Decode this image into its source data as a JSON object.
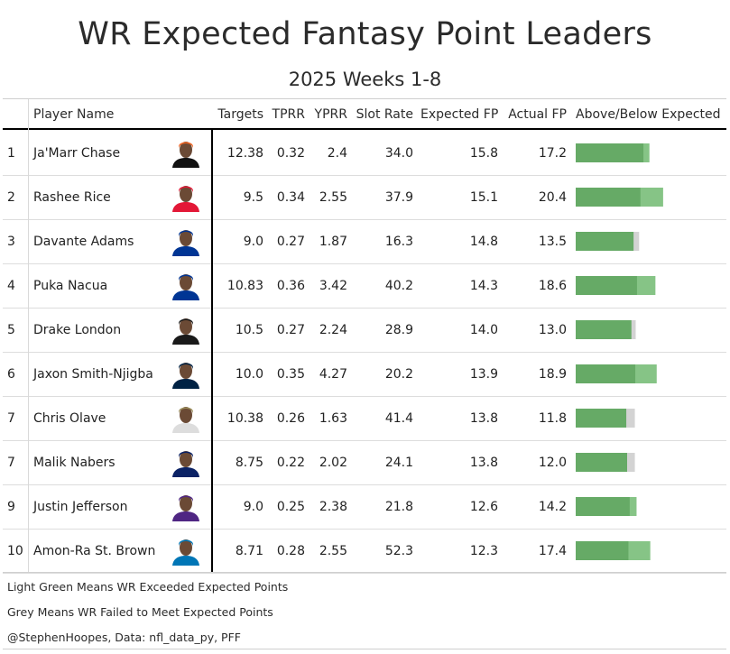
{
  "title": "WR Expected Fantasy Point Leaders",
  "subtitle": "2025 Weeks 1-8",
  "columns": {
    "player_name": "Player Name",
    "targets": "Targets",
    "tprr": "TPRR",
    "yprr": "YPRR",
    "slot_rate": "Slot Rate",
    "expected_fp": "Expected FP",
    "actual_fp": "Actual FP",
    "above_below": "Above/Below Expected"
  },
  "colors": {
    "expected_bar": "#66aa66",
    "exceeded": "#86c486",
    "failed": "#d3d3d3"
  },
  "rows": [
    {
      "rank": "1",
      "player": "Ja'Marr Chase",
      "targets": "12.38",
      "tprr": "0.32",
      "yprr": "2.4",
      "slot_rate": "34.0",
      "expected_fp": "15.8",
      "actual_fp": "17.2",
      "helmet_color": "#f26522",
      "jersey_color": "#111111"
    },
    {
      "rank": "2",
      "player": "Rashee Rice",
      "targets": "9.5",
      "tprr": "0.34",
      "yprr": "2.55",
      "slot_rate": "37.9",
      "expected_fp": "15.1",
      "actual_fp": "20.4",
      "helmet_color": "#e31837",
      "jersey_color": "#e31837"
    },
    {
      "rank": "3",
      "player": "Davante Adams",
      "targets": "9.0",
      "tprr": "0.27",
      "yprr": "1.87",
      "slot_rate": "16.3",
      "expected_fp": "14.8",
      "actual_fp": "13.5",
      "helmet_color": "#003594",
      "jersey_color": "#003594"
    },
    {
      "rank": "4",
      "player": "Puka Nacua",
      "targets": "10.83",
      "tprr": "0.36",
      "yprr": "3.42",
      "slot_rate": "40.2",
      "expected_fp": "14.3",
      "actual_fp": "18.6",
      "helmet_color": "#003594",
      "jersey_color": "#003594"
    },
    {
      "rank": "5",
      "player": "Drake London",
      "targets": "10.5",
      "tprr": "0.27",
      "yprr": "2.24",
      "slot_rate": "28.9",
      "expected_fp": "14.0",
      "actual_fp": "13.0",
      "helmet_color": "#1a1a1a",
      "jersey_color": "#1a1a1a"
    },
    {
      "rank": "6",
      "player": "Jaxon Smith-Njigba",
      "targets": "10.0",
      "tprr": "0.35",
      "yprr": "4.27",
      "slot_rate": "20.2",
      "expected_fp": "13.9",
      "actual_fp": "18.9",
      "helmet_color": "#002244",
      "jersey_color": "#002244"
    },
    {
      "rank": "7",
      "player": "Chris Olave",
      "targets": "10.38",
      "tprr": "0.26",
      "yprr": "1.63",
      "slot_rate": "41.4",
      "expected_fp": "13.8",
      "actual_fp": "11.8",
      "helmet_color": "#9a8c5a",
      "jersey_color": "#dddddd"
    },
    {
      "rank": "7",
      "player": "Malik Nabers",
      "targets": "8.75",
      "tprr": "0.22",
      "yprr": "2.02",
      "slot_rate": "24.1",
      "expected_fp": "13.8",
      "actual_fp": "12.0",
      "helmet_color": "#0b2265",
      "jersey_color": "#0b2265"
    },
    {
      "rank": "9",
      "player": "Justin Jefferson",
      "targets": "9.0",
      "tprr": "0.25",
      "yprr": "2.38",
      "slot_rate": "21.8",
      "expected_fp": "12.6",
      "actual_fp": "14.2",
      "helmet_color": "#4f2683",
      "jersey_color": "#4f2683"
    },
    {
      "rank": "10",
      "player": "Amon-Ra St. Brown",
      "targets": "8.71",
      "tprr": "0.28",
      "yprr": "2.55",
      "slot_rate": "52.3",
      "expected_fp": "12.3",
      "actual_fp": "17.4",
      "helmet_color": "#0076b6",
      "jersey_color": "#0076b6"
    }
  ],
  "chart_data": {
    "type": "bar",
    "categories": [
      "Ja'Marr Chase",
      "Rashee Rice",
      "Davante Adams",
      "Puka Nacua",
      "Drake London",
      "Jaxon Smith-Njigba",
      "Chris Olave",
      "Malik Nabers",
      "Justin Jefferson",
      "Amon-Ra St. Brown"
    ],
    "series": [
      {
        "name": "Expected FP",
        "values": [
          15.8,
          15.1,
          14.8,
          14.3,
          14.0,
          13.9,
          13.8,
          13.8,
          12.6,
          12.3
        ]
      },
      {
        "name": "Actual FP",
        "values": [
          17.2,
          20.4,
          13.5,
          18.6,
          13.0,
          18.9,
          11.8,
          12.0,
          14.2,
          17.4
        ]
      }
    ],
    "title": "",
    "xlabel": "",
    "ylabel": "",
    "xlim": [
      0,
      34
    ]
  },
  "footer": {
    "line1": "Light Green Means WR Exceeded Expected Points",
    "line2": "Grey Means WR Failed to Meet Expected Points",
    "line3": "@StephenHoopes, Data: nfl_data_py, PFF"
  }
}
